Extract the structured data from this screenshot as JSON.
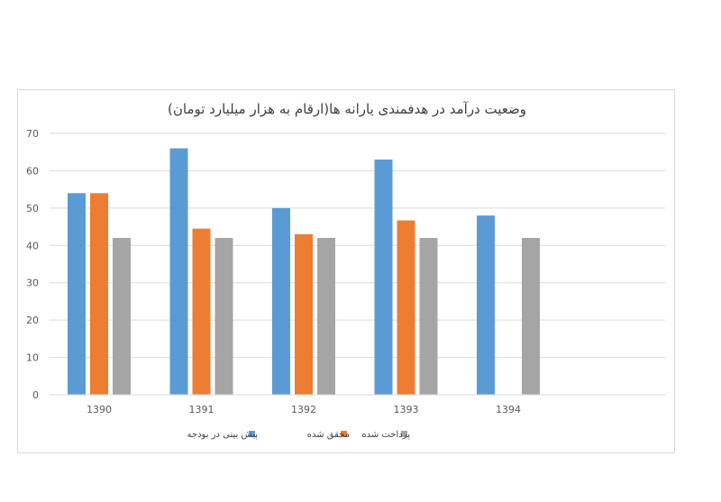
{
  "chart_data": {
    "type": "bar",
    "title": "وضعیت درآمد در هدفمندی یارانه ها(ارقام به هزار میلیارد تومان)",
    "categories": [
      "1390",
      "1391",
      "1392",
      "1393",
      "1394"
    ],
    "series": [
      {
        "name": "پیش بینی در بودجه",
        "color": "#5b9bd5",
        "values": [
          54,
          66,
          50,
          63,
          48
        ]
      },
      {
        "name": "محقق شده",
        "color": "#ed7d31",
        "values": [
          54,
          44.5,
          43,
          46.7,
          null
        ]
      },
      {
        "name": "پرداخت شده",
        "color": "#a5a5a5",
        "values": [
          42,
          42,
          42,
          42,
          42
        ]
      }
    ],
    "ylim": [
      0,
      70
    ],
    "yticks": [
      0,
      10,
      20,
      30,
      40,
      50,
      60,
      70
    ],
    "grid": true,
    "legend_position": "bottom"
  }
}
